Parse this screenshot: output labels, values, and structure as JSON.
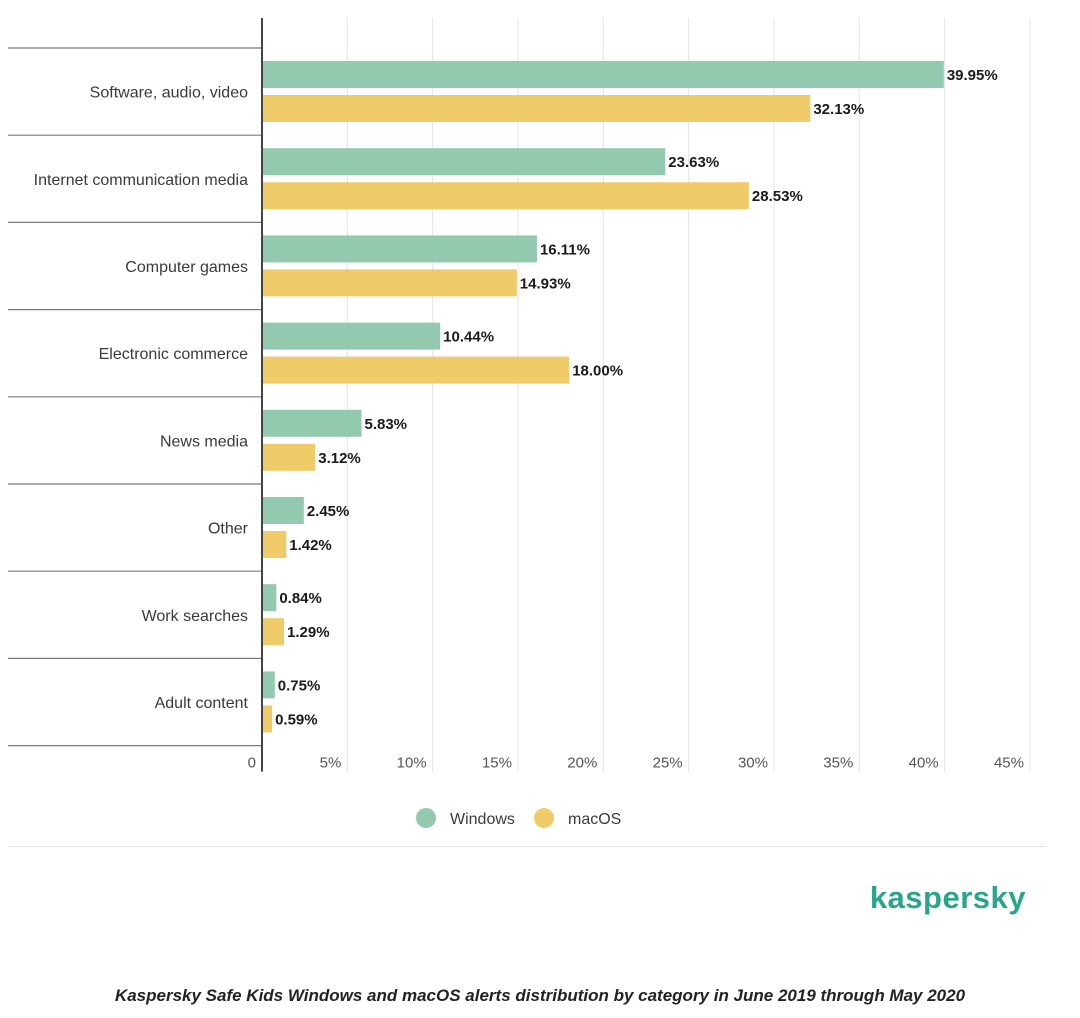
{
  "chart_data": {
    "type": "bar",
    "orientation": "horizontal",
    "categories": [
      "Software, audio, video",
      "Internet communication media",
      "Computer games",
      "Electronic commerce",
      "News media",
      "Other",
      "Work searches",
      "Adult content"
    ],
    "series": [
      {
        "name": "Windows",
        "color": "#93c9ae",
        "values": [
          39.95,
          23.63,
          16.11,
          10.44,
          5.83,
          2.45,
          0.84,
          0.75
        ],
        "labels": [
          "39.95%",
          "23.63%",
          "16.11%",
          "10.44%",
          "5.83%",
          "2.45%",
          "0.84%",
          "0.75%"
        ]
      },
      {
        "name": "macOS",
        "color": "#f0cb6a",
        "values": [
          32.13,
          28.53,
          14.93,
          18.0,
          3.12,
          1.42,
          1.29,
          0.59
        ],
        "labels": [
          "32.13%",
          "28.53%",
          "14.93%",
          "18.00%",
          "3.12%",
          "1.42%",
          "1.29%",
          "0.59%"
        ]
      }
    ],
    "xlim": [
      0,
      45
    ],
    "xticks": [
      0,
      5,
      10,
      15,
      20,
      25,
      30,
      35,
      40,
      45
    ],
    "xtick_labels": [
      "0",
      "5%",
      "10%",
      "15%",
      "20%",
      "25%",
      "30%",
      "35%",
      "40%",
      "45%"
    ],
    "grid": "vertical",
    "legend": "bottom-center"
  },
  "brand": "kaspersky",
  "caption": "Kaspersky Safe Kids Windows and macOS alerts distribution by category in June 2019 through May 2020"
}
